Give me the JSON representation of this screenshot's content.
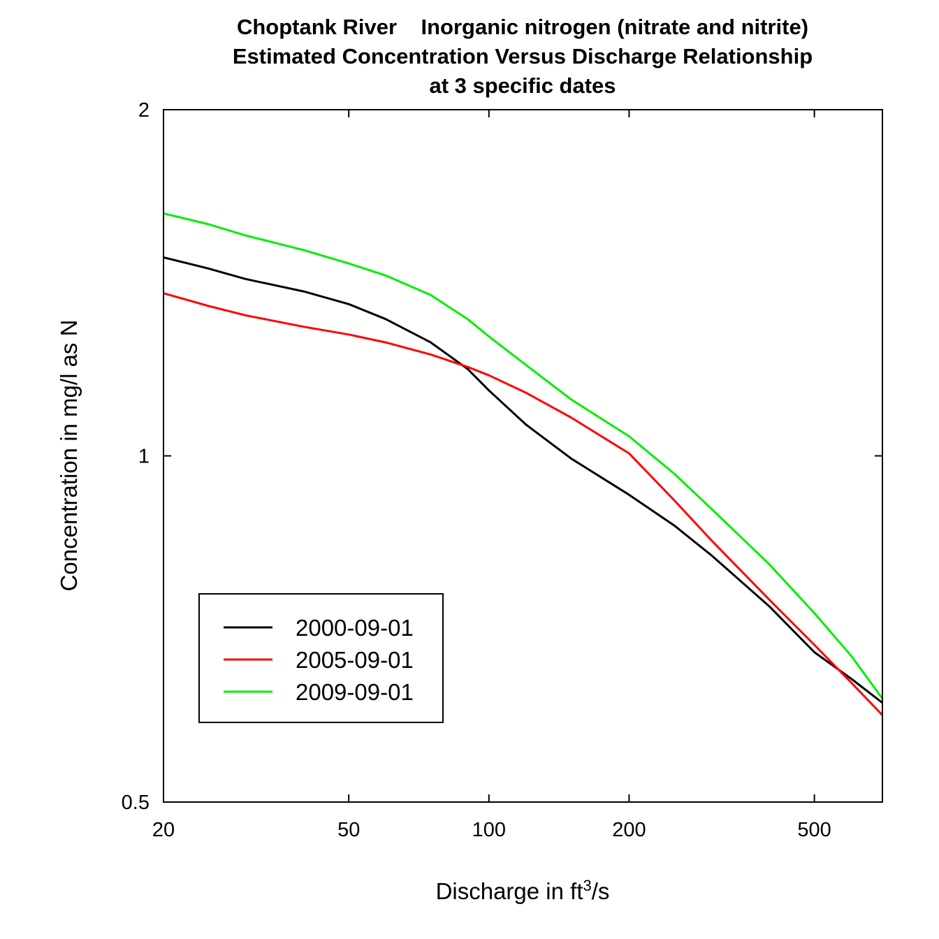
{
  "chart_data": {
    "type": "line",
    "title": [
      "Choptank River    Inorganic nitrogen (nitrate and nitrite)",
      "Estimated Concentration Versus Discharge Relationship",
      "at 3 specific dates"
    ],
    "xlabel": {
      "main": "Discharge in ft",
      "sup": "3",
      "tail": "/s"
    },
    "ylabel": "Concentration in mg/l as N",
    "x_scale": "log",
    "y_scale": "log",
    "xlim": [
      20,
      700
    ],
    "ylim": [
      0.5,
      2
    ],
    "x_ticks": [
      20,
      50,
      100,
      200,
      500
    ],
    "x_tick_labels": [
      "20",
      "50",
      "100",
      "200",
      "500"
    ],
    "y_ticks": [
      0.5,
      1,
      2
    ],
    "y_tick_labels": [
      "0.5",
      "1",
      "2"
    ],
    "grid": false,
    "legend_position": "bottom-left",
    "x": [
      20,
      25,
      30,
      40,
      50,
      60,
      75,
      90,
      100,
      120,
      150,
      200,
      250,
      300,
      400,
      500,
      600,
      700
    ],
    "series": [
      {
        "name": "2000-09-01",
        "color": "#000000",
        "values": [
          1.488,
          1.455,
          1.425,
          1.39,
          1.355,
          1.315,
          1.255,
          1.19,
          1.14,
          1.065,
          0.995,
          0.925,
          0.87,
          0.82,
          0.74,
          0.675,
          0.64,
          0.61
        ]
      },
      {
        "name": "2005-09-01",
        "color": "#ff0000",
        "values": [
          1.385,
          1.35,
          1.325,
          1.295,
          1.275,
          1.255,
          1.225,
          1.195,
          1.175,
          1.135,
          1.08,
          1.005,
          0.915,
          0.845,
          0.75,
          0.685,
          0.635,
          0.595
        ]
      },
      {
        "name": "2009-09-01",
        "color": "#00ee00",
        "values": [
          1.625,
          1.59,
          1.555,
          1.51,
          1.47,
          1.435,
          1.38,
          1.315,
          1.27,
          1.2,
          1.12,
          1.04,
          0.965,
          0.9,
          0.805,
          0.73,
          0.67,
          0.615
        ]
      }
    ]
  }
}
